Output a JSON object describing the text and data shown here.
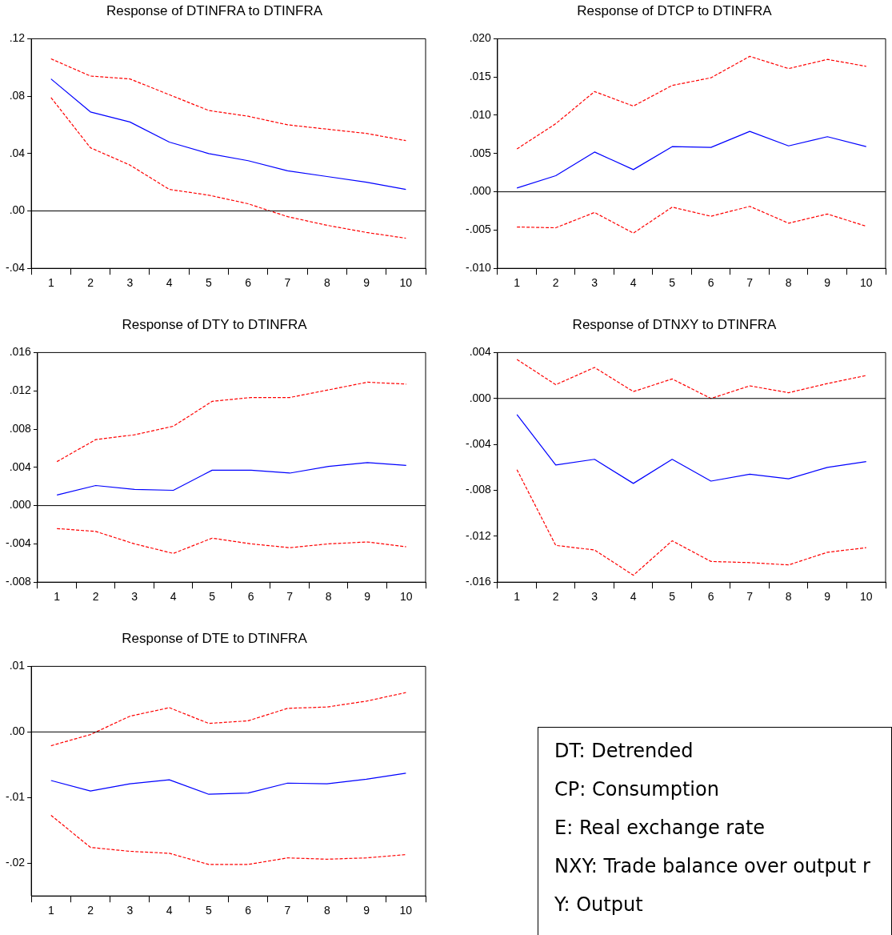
{
  "chart_data": [
    {
      "type": "line",
      "title": "Response of DTINFRA to DTINFRA",
      "categories": [
        "1",
        "2",
        "3",
        "4",
        "5",
        "6",
        "7",
        "8",
        "9",
        "10"
      ],
      "series": [
        {
          "color": "#0000ff",
          "line_style": "solid",
          "values": [
            0.092,
            0.069,
            0.062,
            0.048,
            0.04,
            0.035,
            0.028,
            0.024,
            0.02,
            0.015
          ]
        },
        {
          "color": "#ff0000",
          "line_style": "dashed",
          "values": [
            0.106,
            0.094,
            0.092,
            0.081,
            0.07,
            0.066,
            0.06,
            0.057,
            0.054,
            0.049
          ]
        },
        {
          "color": "#ff0000",
          "line_style": "dashed",
          "values": [
            0.079,
            0.044,
            0.032,
            0.015,
            0.011,
            0.005,
            -0.004,
            -0.01,
            -0.015,
            -0.019
          ]
        }
      ],
      "ylim": [
        -0.04,
        0.12
      ],
      "yticks": [
        {
          "value": -0.04,
          "label": "-.04"
        },
        {
          "value": 0,
          "label": ".00"
        },
        {
          "value": 0.04,
          "label": ".04"
        },
        {
          "value": 0.08,
          "label": ".08"
        },
        {
          "value": 0.12,
          "label": ".12"
        }
      ],
      "ref_lines": [
        {
          "axis": "y",
          "value": 0,
          "color": "#000000"
        }
      ],
      "grid": false,
      "legend": false
    },
    {
      "type": "line",
      "title": "Response of DTCP to DTINFRA",
      "categories": [
        "1",
        "2",
        "3",
        "4",
        "5",
        "6",
        "7",
        "8",
        "9",
        "10"
      ],
      "series": [
        {
          "color": "#0000ff",
          "line_style": "solid",
          "values": [
            0.0005,
            0.0021,
            0.0052,
            0.0029,
            0.0059,
            0.0058,
            0.0079,
            0.006,
            0.0072,
            0.0059
          ]
        },
        {
          "color": "#ff0000",
          "line_style": "dashed",
          "values": [
            0.0056,
            0.0089,
            0.0131,
            0.0112,
            0.0139,
            0.0149,
            0.0177,
            0.0161,
            0.0173,
            0.0164
          ]
        },
        {
          "color": "#ff0000",
          "line_style": "dashed",
          "values": [
            -0.0046,
            -0.0047,
            -0.0027,
            -0.0054,
            -0.002,
            -0.0032,
            -0.0019,
            -0.0041,
            -0.0029,
            -0.0045
          ]
        }
      ],
      "ylim": [
        -0.01,
        0.02
      ],
      "yticks": [
        {
          "value": -0.01,
          "label": "-.010"
        },
        {
          "value": -0.005,
          "label": "-.005"
        },
        {
          "value": 0,
          "label": ".000"
        },
        {
          "value": 0.005,
          "label": ".005"
        },
        {
          "value": 0.01,
          "label": ".010"
        },
        {
          "value": 0.015,
          "label": ".015"
        },
        {
          "value": 0.02,
          "label": ".020"
        }
      ],
      "ref_lines": [
        {
          "axis": "y",
          "value": 0,
          "color": "#000000"
        }
      ],
      "grid": false,
      "legend": false
    },
    {
      "type": "line",
      "title": "Response of DTY to DTINFRA",
      "categories": [
        "1",
        "2",
        "3",
        "4",
        "5",
        "6",
        "7",
        "8",
        "9",
        "10"
      ],
      "series": [
        {
          "color": "#0000ff",
          "line_style": "solid",
          "values": [
            0.0011,
            0.0021,
            0.0017,
            0.0016,
            0.0037,
            0.0037,
            0.0034,
            0.0041,
            0.0045,
            0.0042
          ]
        },
        {
          "color": "#ff0000",
          "line_style": "dashed",
          "values": [
            0.0046,
            0.0069,
            0.0074,
            0.0083,
            0.0109,
            0.0113,
            0.0113,
            0.0121,
            0.0129,
            0.0127
          ]
        },
        {
          "color": "#ff0000",
          "line_style": "dashed",
          "values": [
            -0.0024,
            -0.0027,
            -0.004,
            -0.005,
            -0.0034,
            -0.004,
            -0.0044,
            -0.004,
            -0.0038,
            -0.0043
          ]
        }
      ],
      "ylim": [
        -0.008,
        0.016
      ],
      "yticks": [
        {
          "value": -0.008,
          "label": "-.008"
        },
        {
          "value": -0.004,
          "label": "-.004"
        },
        {
          "value": 0,
          "label": ".000"
        },
        {
          "value": 0.004,
          "label": ".004"
        },
        {
          "value": 0.008,
          "label": ".008"
        },
        {
          "value": 0.012,
          "label": ".012"
        },
        {
          "value": 0.016,
          "label": ".016"
        }
      ],
      "ref_lines": [
        {
          "axis": "y",
          "value": 0,
          "color": "#000000"
        }
      ],
      "grid": false,
      "legend": false
    },
    {
      "type": "line",
      "title": "Response of DTNXY to DTINFRA",
      "categories": [
        "1",
        "2",
        "3",
        "4",
        "5",
        "6",
        "7",
        "8",
        "9",
        "10"
      ],
      "series": [
        {
          "color": "#0000ff",
          "line_style": "solid",
          "values": [
            -0.0014,
            -0.0058,
            -0.0053,
            -0.0074,
            -0.0053,
            -0.0072,
            -0.0066,
            -0.007,
            -0.006,
            -0.0055
          ]
        },
        {
          "color": "#ff0000",
          "line_style": "dashed",
          "values": [
            0.0034,
            0.0012,
            0.0027,
            0.0006,
            0.0017,
            0.0,
            0.0011,
            0.0005,
            0.0013,
            0.002
          ]
        },
        {
          "color": "#ff0000",
          "line_style": "dashed",
          "values": [
            -0.0062,
            -0.0128,
            -0.0132,
            -0.0154,
            -0.0124,
            -0.0142,
            -0.0143,
            -0.0145,
            -0.0134,
            -0.013
          ]
        }
      ],
      "ylim": [
        -0.016,
        0.004
      ],
      "yticks": [
        {
          "value": -0.016,
          "label": "-.016"
        },
        {
          "value": -0.012,
          "label": "-.012"
        },
        {
          "value": -0.008,
          "label": "-.008"
        },
        {
          "value": -0.004,
          "label": "-.004"
        },
        {
          "value": 0,
          "label": ".000"
        },
        {
          "value": 0.004,
          "label": ".004"
        }
      ],
      "ref_lines": [
        {
          "axis": "y",
          "value": 0,
          "color": "#000000"
        }
      ],
      "grid": false,
      "legend": false
    },
    {
      "type": "line",
      "title": "Response of DTE to DTINFRA",
      "categories": [
        "1",
        "2",
        "3",
        "4",
        "5",
        "6",
        "7",
        "8",
        "9",
        "10"
      ],
      "series": [
        {
          "color": "#0000ff",
          "line_style": "solid",
          "values": [
            -0.0074,
            -0.009,
            -0.0079,
            -0.0073,
            -0.0095,
            -0.0093,
            -0.0078,
            -0.0079,
            -0.0072,
            -0.0063
          ]
        },
        {
          "color": "#ff0000",
          "line_style": "dashed",
          "values": [
            -0.0021,
            -0.0004,
            0.0024,
            0.0037,
            0.0013,
            0.0017,
            0.0036,
            0.0038,
            0.0047,
            0.006
          ]
        },
        {
          "color": "#ff0000",
          "line_style": "dashed",
          "values": [
            -0.0127,
            -0.0176,
            -0.0182,
            -0.0185,
            -0.0202,
            -0.0202,
            -0.0192,
            -0.0194,
            -0.0192,
            -0.0187
          ]
        }
      ],
      "ylim": [
        -0.025,
        0.01
      ],
      "yticks": [
        {
          "value": -0.02,
          "label": "-.02"
        },
        {
          "value": -0.01,
          "label": "-.01"
        },
        {
          "value": 0,
          "label": ".00"
        },
        {
          "value": 0.01,
          "label": ".01"
        }
      ],
      "ref_lines": [
        {
          "axis": "y",
          "value": 0,
          "color": "#000000"
        }
      ],
      "grid": false,
      "legend": false
    },
    {
      "type": "other",
      "annotations": [
        "DT: Detrended",
        "CP: Consumption",
        "E: Real exchange rate",
        "NXY: Trade balance over output r",
        "Y: Output"
      ]
    }
  ]
}
